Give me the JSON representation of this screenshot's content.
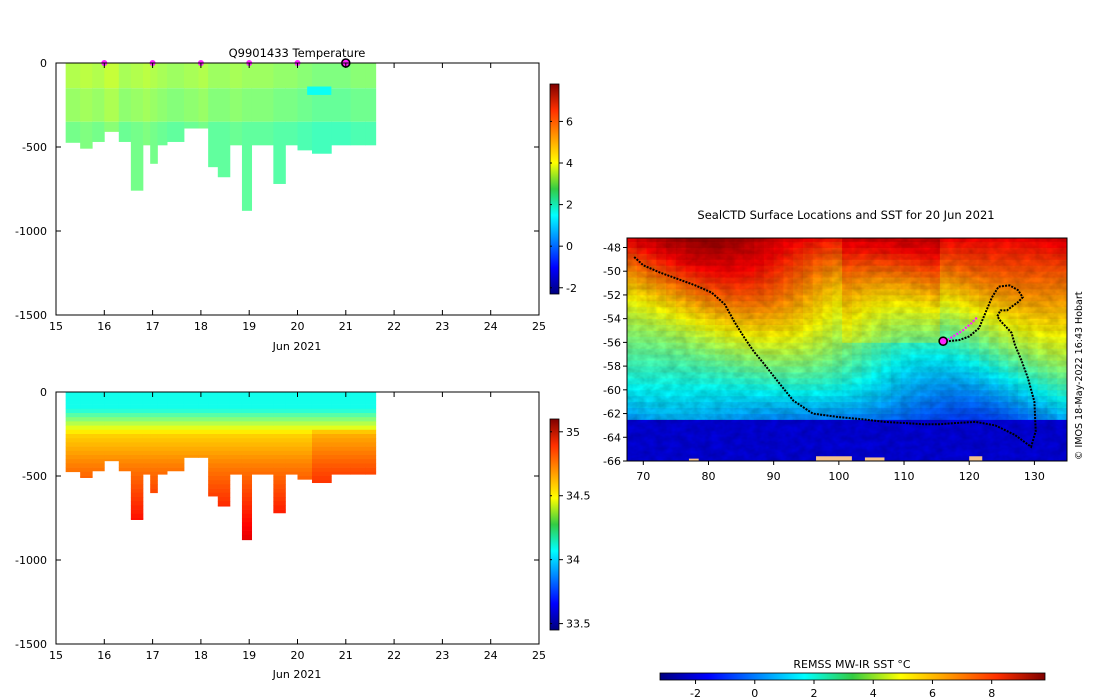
{
  "chart_data": [
    {
      "type": "heatmap",
      "title": "Q9901433  Temperature",
      "xlabel": "Jun 2021",
      "ylabel": "",
      "xlim": [
        15,
        25
      ],
      "ylim": [
        -1500,
        0
      ],
      "x_ticks": [
        15,
        16,
        17,
        18,
        19,
        20,
        21,
        22,
        23,
        24,
        25
      ],
      "y_ticks": [
        0,
        -500,
        -1000,
        -1500
      ],
      "colorbar": {
        "range": [
          -2.3,
          7.8
        ],
        "ticks": [
          -2,
          0,
          2,
          4,
          6
        ],
        "colormap": "jet"
      },
      "markers": {
        "x": [
          16,
          17,
          18,
          19,
          20
        ],
        "color": "#ff22ff"
      },
      "current_marker": {
        "x": 21,
        "y": 0
      },
      "profiles": [
        {
          "x": 15.2,
          "depth": 475,
          "t": 3.0
        },
        {
          "x": 15.5,
          "depth": 510,
          "t": 3.1
        },
        {
          "x": 15.75,
          "depth": 470,
          "t": 3.0
        },
        {
          "x": 16.0,
          "depth": 410,
          "t": 3.2
        },
        {
          "x": 16.3,
          "depth": 470,
          "t": 2.9
        },
        {
          "x": 16.55,
          "depth": 760,
          "t": 3.0
        },
        {
          "x": 16.8,
          "depth": 490,
          "t": 3.1
        },
        {
          "x": 16.95,
          "depth": 600,
          "t": 3.0
        },
        {
          "x": 17.1,
          "depth": 490,
          "t": 2.9
        },
        {
          "x": 17.3,
          "depth": 470,
          "t": 2.8
        },
        {
          "x": 17.65,
          "depth": 390,
          "t": 2.9
        },
        {
          "x": 17.95,
          "depth": 390,
          "t": 3.0
        },
        {
          "x": 18.15,
          "depth": 620,
          "t": 2.8
        },
        {
          "x": 18.35,
          "depth": 680,
          "t": 2.8
        },
        {
          "x": 18.6,
          "depth": 490,
          "t": 2.9
        },
        {
          "x": 18.85,
          "depth": 880,
          "t": 2.8
        },
        {
          "x": 19.05,
          "depth": 490,
          "t": 2.8
        },
        {
          "x": 19.5,
          "depth": 720,
          "t": 2.7
        },
        {
          "x": 19.75,
          "depth": 490,
          "t": 2.7
        },
        {
          "x": 20.0,
          "depth": 520,
          "t": 2.6
        },
        {
          "x": 20.3,
          "depth": 540,
          "t": 2.5
        },
        {
          "x": 20.7,
          "depth": 490,
          "t": 2.5
        },
        {
          "x": 21.1,
          "depth": 490,
          "t": 2.6
        },
        {
          "x": 21.4,
          "depth": 490,
          "t": 2.6
        }
      ]
    },
    {
      "type": "heatmap",
      "title": "",
      "xlabel": "Jun 2021",
      "ylabel": "",
      "xlim": [
        15,
        25
      ],
      "ylim": [
        -1500,
        0
      ],
      "x_ticks": [
        15,
        16,
        17,
        18,
        19,
        20,
        21,
        22,
        23,
        24,
        25
      ],
      "y_ticks": [
        0,
        -500,
        -1000,
        -1500
      ],
      "colorbar": {
        "range": [
          33.45,
          35.1
        ],
        "ticks": [
          33.5,
          34,
          34.5,
          35
        ],
        "colormap": "jet"
      },
      "profiles_ref": "same casts as temperature panel",
      "salinity_profile": {
        "surface": 34.1,
        "mid": 34.55,
        "deep": 34.7,
        "bottom": 34.95
      }
    },
    {
      "type": "heatmap",
      "title": "SealCTD Surface Locations and SST for 20 Jun 2021",
      "xlabel": "",
      "ylabel": "",
      "xlim": [
        67.5,
        135
      ],
      "ylim": [
        -66,
        -47.2
      ],
      "x_ticks": [
        70,
        80,
        90,
        100,
        110,
        120,
        130
      ],
      "y_ticks": [
        -48,
        -50,
        -52,
        -54,
        -56,
        -58,
        -60,
        -62,
        -64,
        -66
      ],
      "colorbar": {
        "label": "REMSS MW-IR SST °C",
        "range": [
          -3.2,
          9.8
        ],
        "ticks": [
          -2,
          0,
          2,
          4,
          6,
          8
        ],
        "colormap": "jet"
      },
      "track": {
        "lon": [
          68.6,
          70,
          72.5,
          75,
          78,
          80.5,
          82.5,
          84,
          85.5,
          87,
          88.5,
          90.5,
          93,
          96,
          100,
          104,
          107,
          110,
          113,
          115.5,
          118,
          121,
          124,
          127,
          129.5,
          130.2,
          130,
          129,
          128,
          127,
          126.5,
          125.5,
          124.8,
          124.3,
          124.8,
          125.8,
          126.5,
          127.5,
          128.2,
          127.5,
          126.2,
          124.5,
          123.5,
          122.5,
          121.5,
          120,
          118.5,
          116.8
        ],
        "lat": [
          -48.8,
          -49.5,
          -50.1,
          -50.6,
          -51.2,
          -51.8,
          -52.8,
          -54.3,
          -55.6,
          -56.8,
          -57.8,
          -59.2,
          -60.9,
          -62.0,
          -62.3,
          -62.5,
          -62.7,
          -62.8,
          -62.9,
          -62.9,
          -62.8,
          -62.7,
          -63.0,
          -63.8,
          -64.8,
          -63.5,
          -61.0,
          -59.0,
          -57.5,
          -56.2,
          -55.2,
          -54.6,
          -54.2,
          -53.8,
          -53.3,
          -53.3,
          -53.0,
          -52.6,
          -52.2,
          -51.6,
          -51.2,
          -51.3,
          -52.2,
          -53.5,
          -54.8,
          -55.5,
          -55.8,
          -55.9
        ]
      },
      "recent_track": {
        "lon": [
          116.2,
          117.5,
          119,
          120.3,
          121.2
        ],
        "lat": [
          -55.95,
          -55.5,
          -55.0,
          -54.4,
          -53.9
        ]
      },
      "current_position": {
        "lon": 116.0,
        "lat": -55.9
      }
    }
  ],
  "page": {
    "side_label": "© IMOS 18-May-2022 16:43 Hobart"
  },
  "colors": {
    "marker_magenta": "#ff22ff",
    "track": "#000000",
    "land": "#f5c28a"
  }
}
